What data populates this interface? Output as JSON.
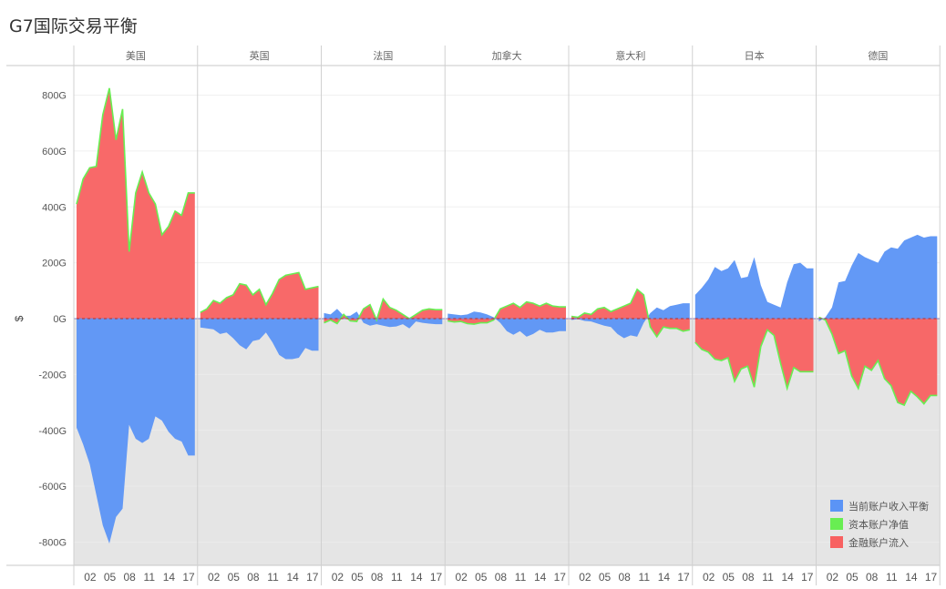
{
  "title": "G7国际交易平衡",
  "chart_data": {
    "type": "area",
    "title": "G7国际交易平衡",
    "ylabel": "$",
    "ylim": [
      -890,
      900
    ],
    "yticks": [
      800,
      600,
      400,
      200,
      0,
      -200,
      -400,
      -600,
      -800
    ],
    "ytick_labels": [
      "800G",
      "600G",
      "400G",
      "200G",
      "0G",
      "-200G",
      "-400G",
      "-600G",
      "-800G"
    ],
    "x_range": [
      2000,
      2018
    ],
    "xticks": [
      2002,
      2005,
      2008,
      2011,
      2014,
      2017
    ],
    "xtick_labels": [
      "02",
      "05",
      "08",
      "11",
      "14",
      "17"
    ],
    "legend_position": "bottom-right",
    "series_colors": {
      "当前账户收入平衡": "#5B94F6",
      "资本账户净值": "#68EE52",
      "金融账户流入": "#F86161"
    },
    "legend": [
      {
        "name": "当前账户收入平衡",
        "color": "#5B94F6"
      },
      {
        "name": "资本账户净值",
        "color": "#68EE52"
      },
      {
        "name": "金融账户流入",
        "color": "#F86161"
      }
    ],
    "panels": [
      {
        "name": "美国",
        "years": [
          2000,
          2001,
          2002,
          2003,
          2004,
          2005,
          2006,
          2007,
          2008,
          2009,
          2010,
          2011,
          2012,
          2013,
          2014,
          2015,
          2016,
          2017,
          2018
        ],
        "current_account": [
          -390,
          -450,
          -520,
          -630,
          -740,
          -805,
          -710,
          -680,
          -380,
          -430,
          -445,
          -430,
          -350,
          -365,
          -405,
          -430,
          -440,
          -490,
          -490
        ],
        "financial_account": [
          410,
          500,
          540,
          545,
          730,
          825,
          640,
          750,
          240,
          450,
          525,
          450,
          410,
          300,
          330,
          385,
          370,
          450,
          450
        ]
      },
      {
        "name": "英国",
        "years": [
          2000,
          2001,
          2002,
          2003,
          2004,
          2005,
          2006,
          2007,
          2008,
          2009,
          2010,
          2011,
          2012,
          2013,
          2014,
          2015,
          2016,
          2017,
          2018
        ],
        "current_account": [
          -32,
          -35,
          -38,
          -55,
          -50,
          -70,
          -95,
          -110,
          -80,
          -75,
          -50,
          -85,
          -130,
          -145,
          -145,
          -140,
          -105,
          -115,
          -115
        ],
        "financial_account": [
          22,
          35,
          65,
          55,
          75,
          85,
          125,
          120,
          85,
          105,
          50,
          90,
          140,
          155,
          160,
          165,
          105,
          110,
          115
        ]
      },
      {
        "name": "法国",
        "years": [
          2000,
          2001,
          2002,
          2003,
          2004,
          2005,
          2006,
          2007,
          2008,
          2009,
          2010,
          2011,
          2012,
          2013,
          2014,
          2015,
          2016,
          2017,
          2018
        ],
        "current_account": [
          20,
          15,
          35,
          10,
          10,
          25,
          -15,
          -25,
          -20,
          -25,
          -30,
          -28,
          -20,
          -35,
          -10,
          -15,
          -18,
          -20,
          -20
        ],
        "financial_account": [
          -15,
          -5,
          -18,
          15,
          -8,
          -10,
          35,
          50,
          -5,
          70,
          40,
          30,
          15,
          0,
          15,
          30,
          35,
          32,
          32
        ]
      },
      {
        "name": "加拿大",
        "years": [
          2000,
          2001,
          2002,
          2003,
          2004,
          2005,
          2006,
          2007,
          2008,
          2009,
          2010,
          2011,
          2012,
          2013,
          2014,
          2015,
          2016,
          2017,
          2018
        ],
        "current_account": [
          18,
          15,
          12,
          15,
          25,
          22,
          15,
          5,
          -15,
          -45,
          -58,
          -45,
          -65,
          -55,
          -40,
          -50,
          -50,
          -45,
          -45
        ],
        "financial_account": [
          -8,
          -12,
          -10,
          -18,
          -20,
          -15,
          -15,
          -5,
          35,
          45,
          55,
          40,
          60,
          55,
          45,
          55,
          45,
          42,
          42
        ]
      },
      {
        "name": "意大利",
        "years": [
          2000,
          2001,
          2002,
          2003,
          2004,
          2005,
          2006,
          2007,
          2008,
          2009,
          2010,
          2011,
          2012,
          2013,
          2014,
          2015,
          2016,
          2017,
          2018
        ],
        "current_account": [
          -5,
          -2,
          -8,
          -10,
          -18,
          -25,
          -30,
          -55,
          -70,
          -60,
          -65,
          -15,
          20,
          40,
          30,
          45,
          50,
          55,
          55
        ],
        "financial_account": [
          8,
          5,
          20,
          15,
          35,
          40,
          25,
          35,
          45,
          55,
          105,
          85,
          -30,
          -65,
          -30,
          -35,
          -35,
          -45,
          -40
        ]
      },
      {
        "name": "日本",
        "years": [
          2000,
          2001,
          2002,
          2003,
          2004,
          2005,
          2006,
          2007,
          2008,
          2009,
          2010,
          2011,
          2012,
          2013,
          2014,
          2015,
          2016,
          2017,
          2018
        ],
        "current_account": [
          85,
          110,
          140,
          185,
          170,
          180,
          210,
          145,
          150,
          220,
          120,
          60,
          50,
          40,
          130,
          195,
          200,
          180,
          180
        ],
        "financial_account": [
          -85,
          -110,
          -120,
          -145,
          -150,
          -140,
          -225,
          -180,
          -170,
          -245,
          -100,
          -40,
          -60,
          -160,
          -250,
          -175,
          -190,
          -190,
          -190
        ]
      },
      {
        "name": "德国",
        "years": [
          2000,
          2001,
          2002,
          2003,
          2004,
          2005,
          2006,
          2007,
          2008,
          2009,
          2010,
          2011,
          2012,
          2013,
          2014,
          2015,
          2016,
          2017,
          2018
        ],
        "current_account": [
          -10,
          5,
          40,
          130,
          135,
          190,
          235,
          220,
          210,
          200,
          240,
          255,
          250,
          280,
          290,
          300,
          290,
          295,
          295
        ],
        "financial_account": [
          5,
          -5,
          -55,
          -125,
          -115,
          -205,
          -250,
          -170,
          -185,
          -150,
          -215,
          -240,
          -300,
          -310,
          -260,
          -280,
          -305,
          -275,
          -275
        ]
      }
    ]
  }
}
